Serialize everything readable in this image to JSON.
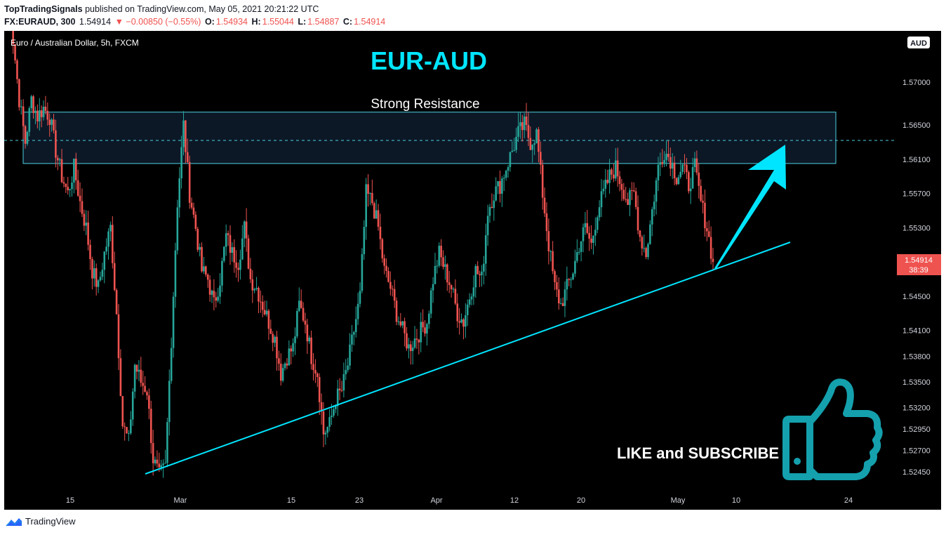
{
  "header": {
    "publisher": "TopTradingSignals",
    "published_text": " published on TradingView.com, May 05, 2021 20:21:22 UTC",
    "symbol": "FX:EURAUD, 300",
    "last": "1.54914",
    "change": "▼ −0.00850 (−0.55%)",
    "o_label": "O:",
    "o_value": "1.54934",
    "h_label": "H:",
    "h_value": "1.55044",
    "l_label": "L:",
    "l_value": "1.54887",
    "c_label": "C:",
    "c_value": "1.54914"
  },
  "footer": {
    "brand": "TradingView"
  },
  "colors": {
    "background": "#000000",
    "up": "#26a69a",
    "down": "#ef5350",
    "accent": "#00e5ff",
    "thumb": "#14a0ad",
    "price_tag": "#ef5350"
  },
  "icons": {
    "footer_logo": "tradingview-logo-icon",
    "like": "thumbs-up-icon"
  },
  "chart_data": {
    "type": "candlestick",
    "title": "EUR-AUD",
    "series_label": "Euro / Australian Dollar, 5h, FXCM",
    "currency_badge": "AUD",
    "y_ticks": [
      "1.57000",
      "1.56500",
      "1.56100",
      "1.55700",
      "1.55300",
      "1.54500",
      "1.54100",
      "1.53800",
      "1.53500",
      "1.53200",
      "1.52950",
      "1.52700",
      "1.52450"
    ],
    "y_ticks_numeric": [
      1.57,
      1.565,
      1.561,
      1.557,
      1.553,
      1.545,
      1.541,
      1.538,
      1.535,
      1.532,
      1.5295,
      1.527,
      1.5245
    ],
    "x_ticks": [
      "15",
      "Mar",
      "15",
      "23",
      "Apr",
      "12",
      "20",
      "May",
      "10",
      "24"
    ],
    "last_price": "1.54914",
    "countdown": "38:39",
    "resistance_zone": {
      "label": "Strong Resistance",
      "low": 1.5605,
      "high": 1.5665,
      "mid": 1.5632
    },
    "support_trendline": {
      "from": [
        "Feb 26",
        1.5235
      ],
      "to": [
        "May 12",
        1.5514
      ]
    },
    "annotation": "LIKE and SUBSCRIBE",
    "closes": [
      1.584,
      1.575,
      1.568,
      1.563,
      1.568,
      1.566,
      1.567,
      1.566,
      1.562,
      1.559,
      1.557,
      1.56,
      1.556,
      1.553,
      1.548,
      1.546,
      1.55,
      1.553,
      1.543,
      1.53,
      1.528,
      1.537,
      1.535,
      1.534,
      1.526,
      1.524,
      1.525,
      1.54,
      1.556,
      1.565,
      1.557,
      1.553,
      1.548,
      1.547,
      1.544,
      1.547,
      1.552,
      1.55,
      1.549,
      1.553,
      1.547,
      1.546,
      1.544,
      1.542,
      1.54,
      1.536,
      1.538,
      1.539,
      1.544,
      1.542,
      1.538,
      1.536,
      1.529,
      1.53,
      1.533,
      1.534,
      1.537,
      1.541,
      1.545,
      1.557,
      1.556,
      1.553,
      1.548,
      1.546,
      1.543,
      1.541,
      1.539,
      1.54,
      1.541,
      1.542,
      1.547,
      1.55,
      1.548,
      1.546,
      1.543,
      1.542,
      1.545,
      1.548,
      1.547,
      1.555,
      1.557,
      1.558,
      1.56,
      1.562,
      1.564,
      1.565,
      1.563,
      1.564,
      1.557,
      1.551,
      1.546,
      1.544,
      1.546,
      1.548,
      1.551,
      1.553,
      1.551,
      1.555,
      1.557,
      1.559,
      1.56,
      1.558,
      1.556,
      1.557,
      1.552,
      1.55,
      1.555,
      1.56,
      1.562,
      1.561,
      1.559,
      1.56,
      1.558,
      1.56,
      1.556,
      1.553,
      1.549
    ]
  }
}
